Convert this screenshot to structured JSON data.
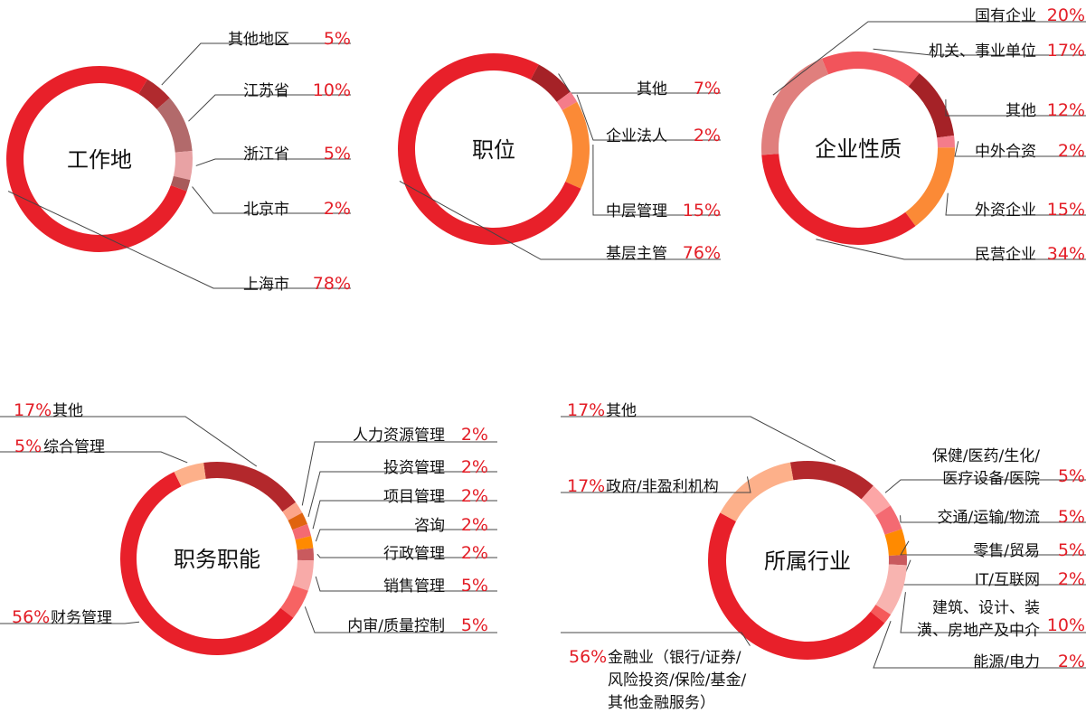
{
  "colors": {
    "percent_text": "#e31d26",
    "leader_line": "#444444"
  },
  "chart_data": [
    {
      "type": "donut",
      "title": "工作地",
      "slices": [
        {
          "name": "其他地区",
          "label": "其他地区",
          "value": 5,
          "pct_label": "5%",
          "color": "#b02a2e"
        },
        {
          "name": "江苏省",
          "label": "江苏省",
          "value": 10,
          "pct_label": "10%",
          "color": "#b26a6b"
        },
        {
          "name": "浙江省",
          "label": "浙江省",
          "value": 5,
          "pct_label": "5%",
          "color": "#e8a2a4"
        },
        {
          "name": "北京市",
          "label": "北京市",
          "value": 2,
          "pct_label": "2%",
          "color": "#a85a5a"
        },
        {
          "name": "上海市",
          "label": "上海市",
          "value": 78,
          "pct_label": "78%",
          "color": "#e8202a"
        }
      ]
    },
    {
      "type": "donut",
      "title": "职位",
      "slices": [
        {
          "name": "其他",
          "label": "其他",
          "value": 7,
          "pct_label": "7%",
          "color": "#a52227"
        },
        {
          "name": "企业法人",
          "label": "企业法人",
          "value": 2,
          "pct_label": "2%",
          "color": "#f47c8a"
        },
        {
          "name": "中层管理",
          "label": "中层管理",
          "value": 15,
          "pct_label": "15%",
          "color": "#fb8a36"
        },
        {
          "name": "基层主管",
          "label": "基层主管",
          "value": 76,
          "pct_label": "76%",
          "color": "#e8202a"
        }
      ]
    },
    {
      "type": "donut",
      "title": "企业性质",
      "slices": [
        {
          "name": "机关、事业单位",
          "label": "机关、事业单位",
          "value": 17,
          "pct_label": "17%",
          "color": "#f2545b"
        },
        {
          "name": "其他",
          "label": "其他",
          "value": 12,
          "pct_label": "12%",
          "color": "#a52227"
        },
        {
          "name": "中外合资",
          "label": "中外合资",
          "value": 2,
          "pct_label": "2%",
          "color": "#f47c8a"
        },
        {
          "name": "外资企业",
          "label": "外资企业",
          "value": 15,
          "pct_label": "15%",
          "color": "#fb8a36"
        },
        {
          "name": "民营企业",
          "label": "民营企业",
          "value": 34,
          "pct_label": "34%",
          "color": "#e8202a"
        },
        {
          "name": "国有企业",
          "label": "国有企业",
          "value": 20,
          "pct_label": "20%",
          "color": "#e07f7d"
        }
      ]
    },
    {
      "type": "donut",
      "title": "职务职能",
      "slices": [
        {
          "name": "其他",
          "label": "其他",
          "value": 17,
          "pct_label": "17%",
          "color": "#b3282c"
        },
        {
          "name": "人力资源管理",
          "label": "人力资源管理",
          "value": 2,
          "pct_label": "2%",
          "color": "#fca48a"
        },
        {
          "name": "投资管理",
          "label": "投资管理",
          "value": 2,
          "pct_label": "2%",
          "color": "#e0640f"
        },
        {
          "name": "项目管理",
          "label": "项目管理",
          "value": 2,
          "pct_label": "2%",
          "color": "#f46a72"
        },
        {
          "name": "咨询",
          "label": "咨询",
          "value": 2,
          "pct_label": "2%",
          "color": "#ff8a00"
        },
        {
          "name": "行政管理",
          "label": "行政管理",
          "value": 2,
          "pct_label": "2%",
          "color": "#c95a5e"
        },
        {
          "name": "销售管理",
          "label": "销售管理",
          "value": 5,
          "pct_label": "5%",
          "color": "#f8aaa8"
        },
        {
          "name": "内审/质量控制",
          "label": "内审/质量控制",
          "value": 5,
          "pct_label": "5%",
          "color": "#f76363"
        },
        {
          "name": "财务管理",
          "label": "财务管理",
          "value": 56,
          "pct_label": "56%",
          "color": "#e8202a"
        },
        {
          "name": "综合管理",
          "label": "综合管理",
          "value": 5,
          "pct_label": "5%",
          "color": "#fdb08a"
        }
      ]
    },
    {
      "type": "donut",
      "title": "所属行业",
      "slices": [
        {
          "name": "其他",
          "label": "其他",
          "value": 17,
          "pct_label": "17%",
          "color": "#b3282c"
        },
        {
          "name": "保健/医药/生化/医疗设备/医院",
          "label": "保健/医药/生化/\n医疗设备/医院",
          "value": 5,
          "pct_label": "5%",
          "color": "#fca6a6"
        },
        {
          "name": "交通/运输/物流",
          "label": "交通/运输/物流",
          "value": 5,
          "pct_label": "5%",
          "color": "#f46a72"
        },
        {
          "name": "零售/贸易",
          "label": "零售/贸易",
          "value": 5,
          "pct_label": "5%",
          "color": "#ff8a00"
        },
        {
          "name": "IT/互联网",
          "label": "IT/互联网",
          "value": 2,
          "pct_label": "2%",
          "color": "#c95a5e"
        },
        {
          "name": "建筑、设计、装潢、房地产及中介",
          "label": "建筑、设计、装\n潢、房地产及中介",
          "value": 10,
          "pct_label": "10%",
          "color": "#f8b4b0"
        },
        {
          "name": "能源/电力",
          "label": "能源/电力",
          "value": 2,
          "pct_label": "2%",
          "color": "#f55a5a"
        },
        {
          "name": "金融业（银行/证券/风险投资/保险/基金/其他金融服务）",
          "label": "金融业（银行/证券/\n风险投资/保险/基金/\n其他金融服务）",
          "value": 56,
          "pct_label": "56%",
          "color": "#e8202a"
        },
        {
          "name": "政府/非盈利机构",
          "label": "政府/非盈利机构",
          "value": 17,
          "pct_label": "17%",
          "color": "#fdb08a"
        }
      ]
    }
  ]
}
